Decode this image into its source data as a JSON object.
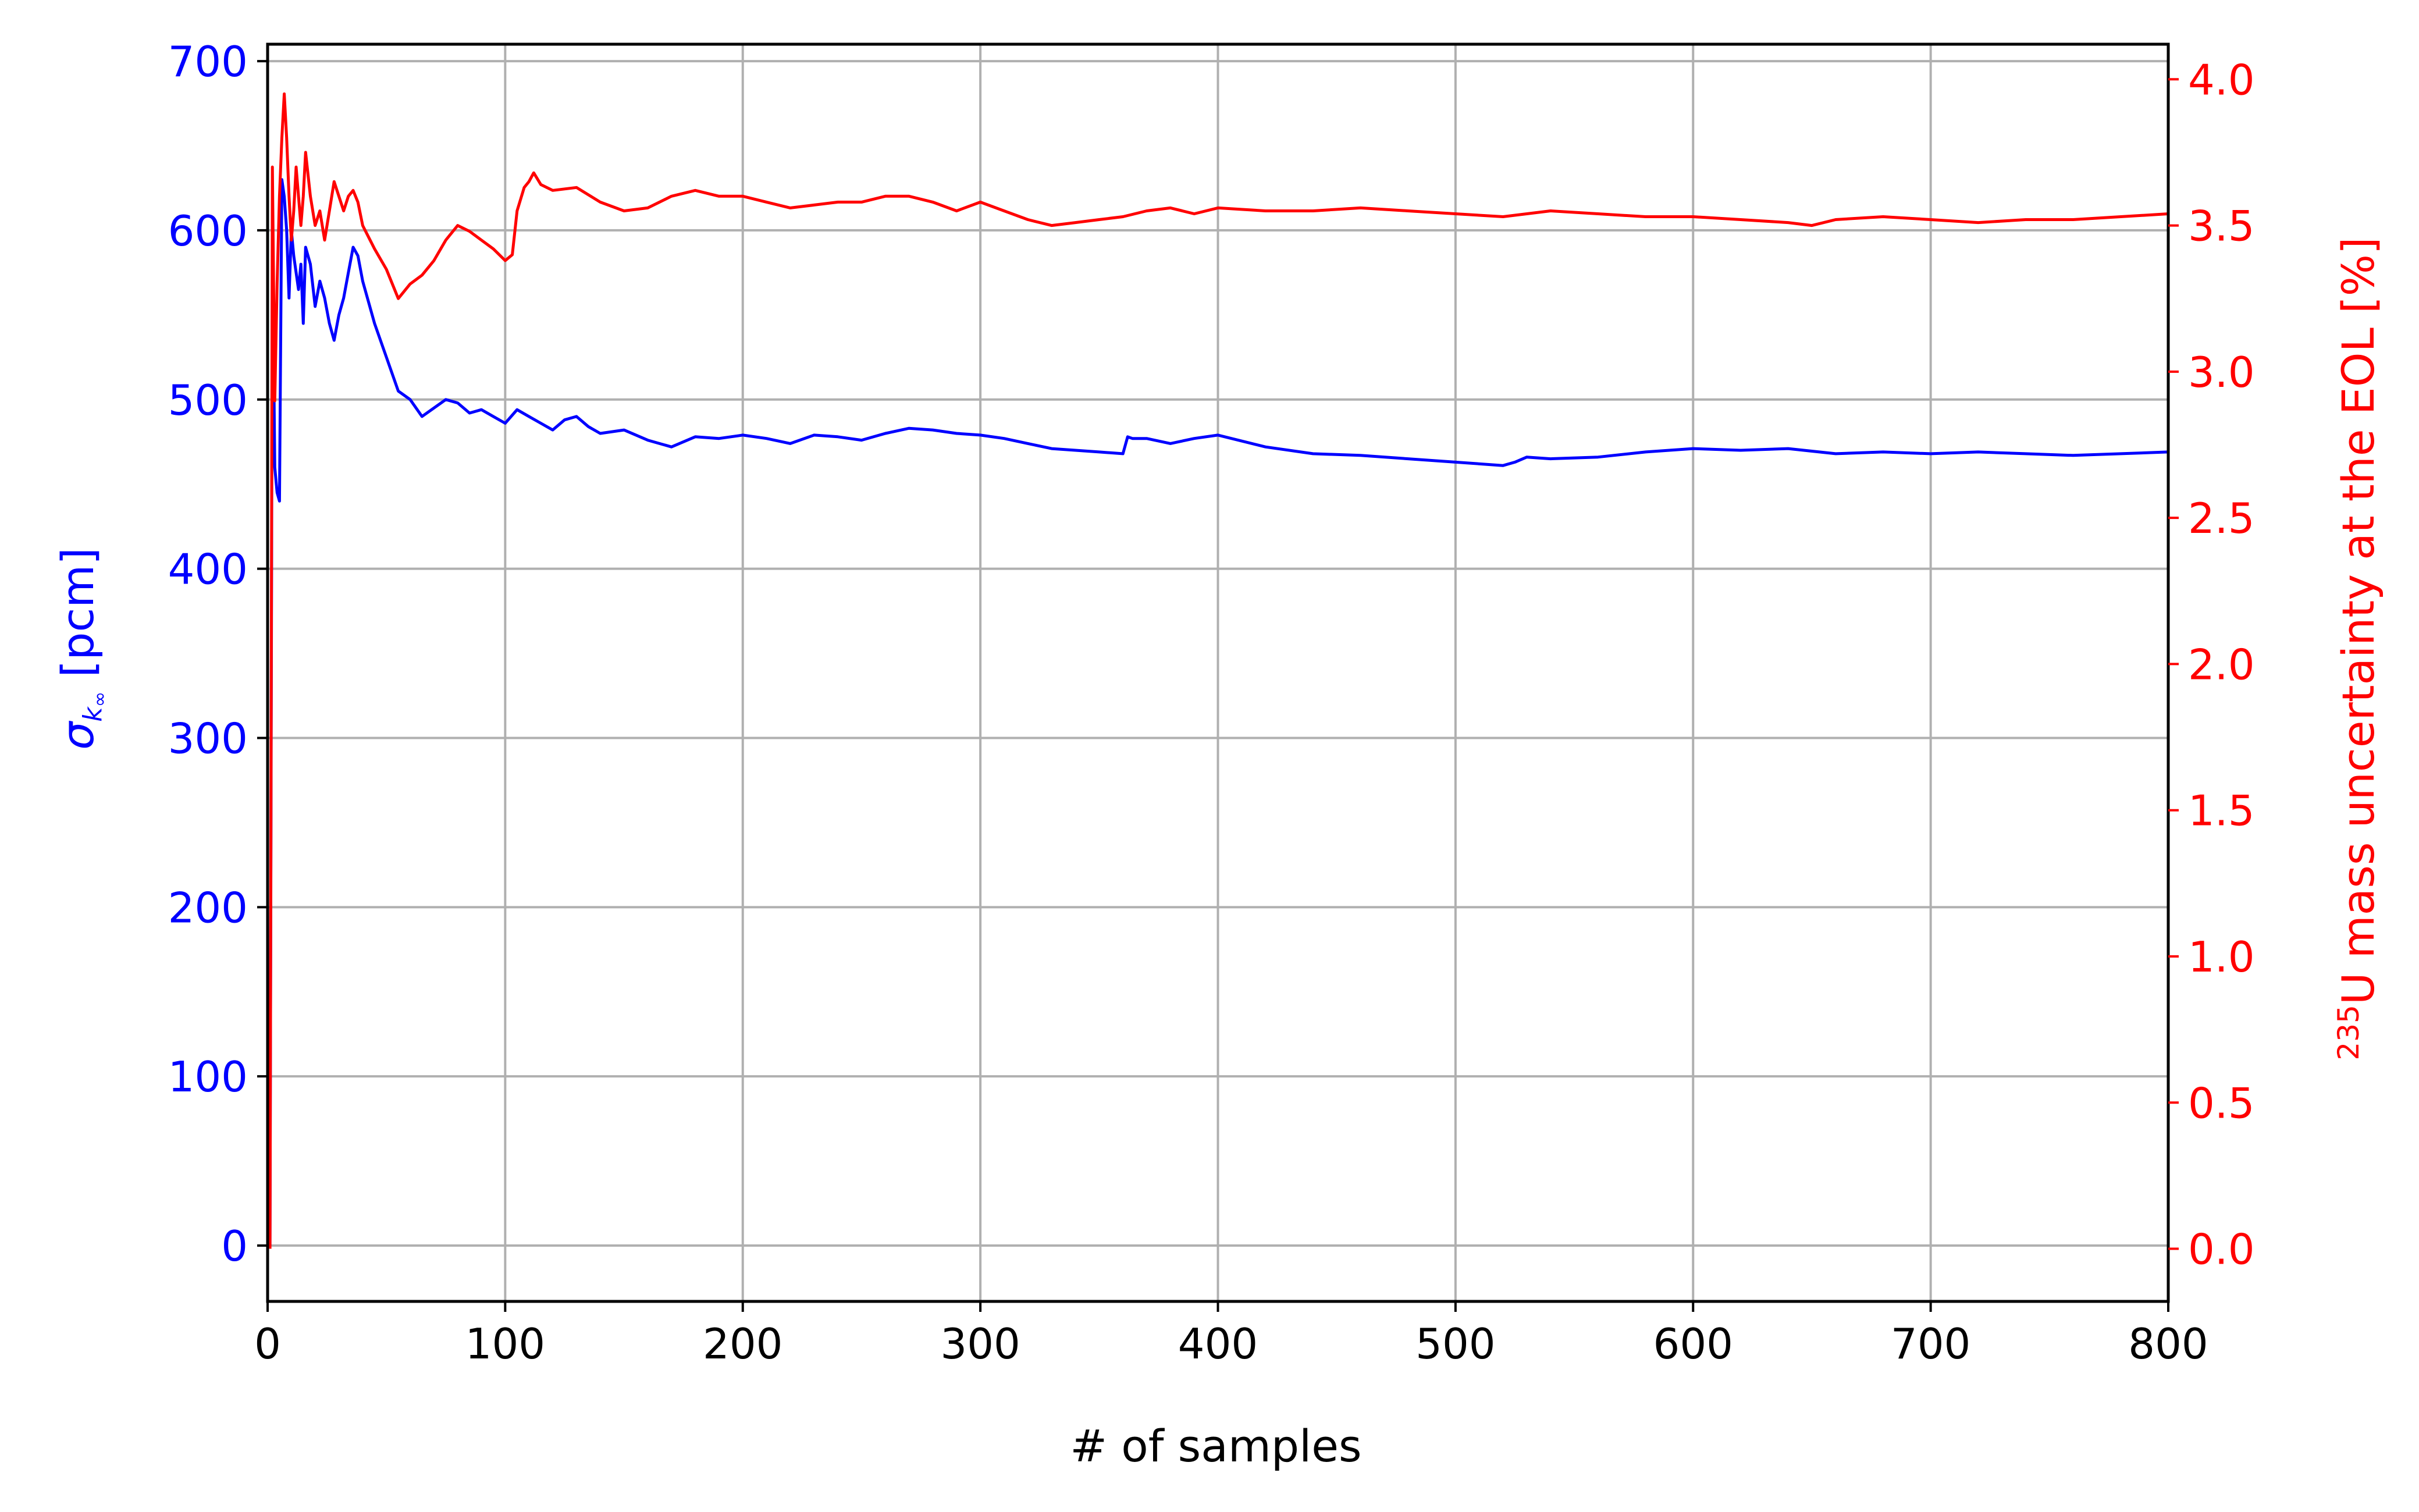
{
  "chart_data": {
    "type": "line",
    "title": "",
    "xlabel": "# of samples",
    "ylabel_left": {
      "sigma": "σ",
      "sub": "k",
      "subsub": "∞",
      "unit": " [pcm]"
    },
    "ylabel_right": {
      "sup": "235",
      "text": "U mass uncertainty at the EOL [%]"
    },
    "xlim": [
      0,
      800
    ],
    "ylim_left": [
      -33,
      710
    ],
    "ylim_right": [
      -0.18,
      4.12
    ],
    "grid": true,
    "x_ticks": [
      "0",
      "100",
      "200",
      "300",
      "400",
      "500",
      "600",
      "700",
      "800"
    ],
    "y_left_ticks": [
      "0",
      "100",
      "200",
      "300",
      "400",
      "500",
      "600",
      "700"
    ],
    "y_right_ticks": [
      "0.0",
      "0.5",
      "1.0",
      "1.5",
      "2.0",
      "2.5",
      "3.0",
      "3.5",
      "4.0"
    ],
    "series": [
      {
        "axis": "left",
        "color": "#0000ff",
        "x": [
          1,
          2,
          3,
          4,
          5,
          6,
          7,
          8,
          9,
          10,
          11,
          12,
          13,
          14,
          15,
          16,
          18,
          20,
          22,
          24,
          26,
          28,
          30,
          32,
          34,
          36,
          38,
          40,
          45,
          50,
          55,
          60,
          65,
          70,
          75,
          80,
          85,
          90,
          95,
          100,
          105,
          110,
          115,
          120,
          125,
          130,
          135,
          140,
          150,
          160,
          170,
          180,
          190,
          200,
          210,
          220,
          230,
          240,
          250,
          260,
          270,
          280,
          290,
          300,
          310,
          320,
          330,
          340,
          350,
          360,
          362,
          364,
          370,
          380,
          390,
          400,
          420,
          440,
          460,
          480,
          500,
          520,
          525,
          530,
          540,
          560,
          580,
          600,
          620,
          640,
          660,
          680,
          700,
          720,
          740,
          760,
          780,
          800
        ],
        "values": [
          0,
          600,
          460,
          445,
          440,
          630,
          620,
          600,
          560,
          600,
          585,
          575,
          565,
          580,
          545,
          590,
          580,
          555,
          570,
          560,
          545,
          535,
          550,
          560,
          575,
          590,
          585,
          570,
          545,
          525,
          505,
          500,
          490,
          495,
          500,
          498,
          492,
          494,
          490,
          486,
          494,
          490,
          486,
          482,
          488,
          490,
          484,
          480,
          482,
          476,
          472,
          478,
          477,
          479,
          477,
          474,
          479,
          478,
          476,
          480,
          483,
          482,
          480,
          479,
          477,
          474,
          471,
          470,
          469,
          468,
          478,
          477,
          477,
          474,
          477,
          479,
          472,
          468,
          467,
          465,
          463,
          461,
          463,
          466,
          465,
          466,
          469,
          471,
          470,
          471,
          468,
          469,
          468,
          469,
          468,
          467,
          468,
          469
        ]
      },
      {
        "axis": "right",
        "color": "#ff0000",
        "x": [
          1,
          2,
          3,
          4,
          5,
          6,
          7,
          8,
          9,
          10,
          11,
          12,
          13,
          14,
          15,
          16,
          18,
          20,
          22,
          24,
          26,
          28,
          30,
          32,
          34,
          36,
          38,
          40,
          45,
          50,
          55,
          60,
          65,
          70,
          75,
          80,
          85,
          90,
          95,
          100,
          103,
          105,
          108,
          110,
          112,
          115,
          120,
          130,
          140,
          150,
          160,
          170,
          180,
          190,
          200,
          210,
          220,
          230,
          240,
          250,
          260,
          270,
          280,
          290,
          300,
          310,
          320,
          330,
          340,
          350,
          360,
          370,
          380,
          390,
          400,
          420,
          440,
          460,
          480,
          500,
          520,
          540,
          560,
          580,
          600,
          620,
          640,
          650,
          660,
          680,
          700,
          720,
          740,
          760,
          780,
          800
        ],
        "values": [
          0.0,
          3.7,
          2.9,
          3.3,
          3.6,
          3.8,
          3.95,
          3.8,
          3.6,
          3.45,
          3.55,
          3.7,
          3.6,
          3.5,
          3.6,
          3.75,
          3.6,
          3.5,
          3.55,
          3.45,
          3.55,
          3.65,
          3.6,
          3.55,
          3.6,
          3.62,
          3.58,
          3.5,
          3.42,
          3.35,
          3.25,
          3.3,
          3.33,
          3.38,
          3.45,
          3.5,
          3.48,
          3.45,
          3.42,
          3.38,
          3.4,
          3.55,
          3.63,
          3.65,
          3.68,
          3.64,
          3.62,
          3.63,
          3.58,
          3.55,
          3.56,
          3.6,
          3.62,
          3.6,
          3.6,
          3.58,
          3.56,
          3.57,
          3.58,
          3.58,
          3.6,
          3.6,
          3.58,
          3.55,
          3.58,
          3.55,
          3.52,
          3.5,
          3.51,
          3.52,
          3.53,
          3.55,
          3.56,
          3.54,
          3.56,
          3.55,
          3.55,
          3.56,
          3.55,
          3.54,
          3.53,
          3.55,
          3.54,
          3.53,
          3.53,
          3.52,
          3.51,
          3.5,
          3.52,
          3.53,
          3.52,
          3.51,
          3.52,
          3.52,
          3.53,
          3.54
        ]
      }
    ]
  }
}
